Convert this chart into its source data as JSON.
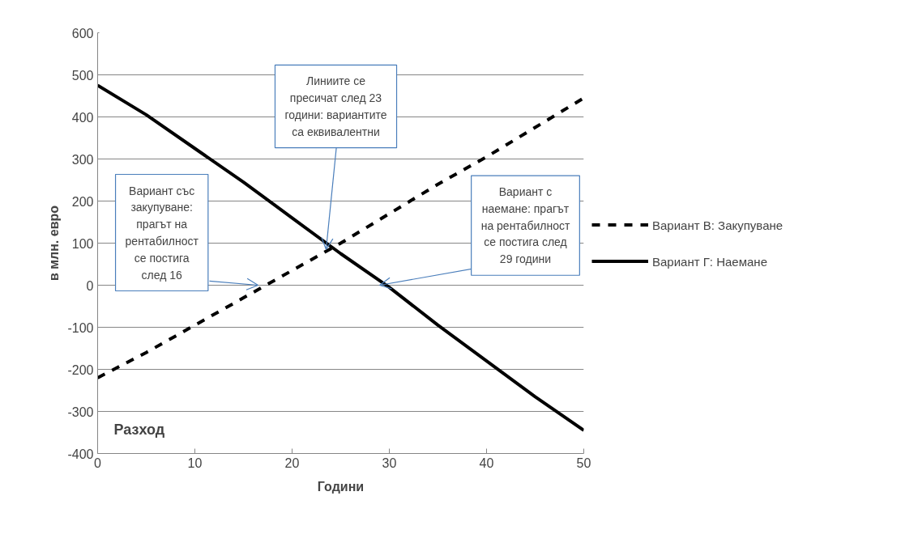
{
  "chart_data": {
    "type": "line",
    "xlabel": "Години",
    "ylabel": "в млн. евро",
    "x": [
      0,
      5,
      10,
      15,
      20,
      25,
      30,
      35,
      40,
      45,
      50
    ],
    "series": [
      {
        "name": "Вариант В: Закупуване",
        "color": "#000000",
        "line_style": "dashed",
        "values": [
          -220,
          -160,
          -95,
          -30,
          35,
          100,
          170,
          240,
          305,
          375,
          445
        ]
      },
      {
        "name": "Вариант Г: Наемане",
        "color": "#000000",
        "line_style": "solid",
        "values": [
          475,
          405,
          325,
          245,
          160,
          75,
          -5,
          -95,
          -180,
          -265,
          -345
        ]
      }
    ],
    "xlim": [
      0,
      50
    ],
    "ylim": [
      -400,
      600
    ],
    "xticks": [
      0,
      10,
      20,
      30,
      40,
      50
    ],
    "yticks": [
      -400,
      -300,
      -200,
      -100,
      0,
      100,
      200,
      300,
      400,
      500,
      600
    ],
    "grid": "y",
    "legend": "right",
    "marker": "none",
    "annotations": [
      {
        "text": "Вариант със\nзакупуване:\nпрагът на\nрентабилност\nсе постига\nслед 16",
        "x": 16.5,
        "y": 0
      },
      {
        "text": "Линиите се\nпресичат след 23\nгодини: вариантите\nса еквивалентни",
        "x": 23.5,
        "y": 85
      },
      {
        "text": "Вариант с\nнаемане: прагът\nна рентабилност\nсе постига след\n29 години",
        "x": 29,
        "y": 0
      },
      "Разход"
    ]
  }
}
